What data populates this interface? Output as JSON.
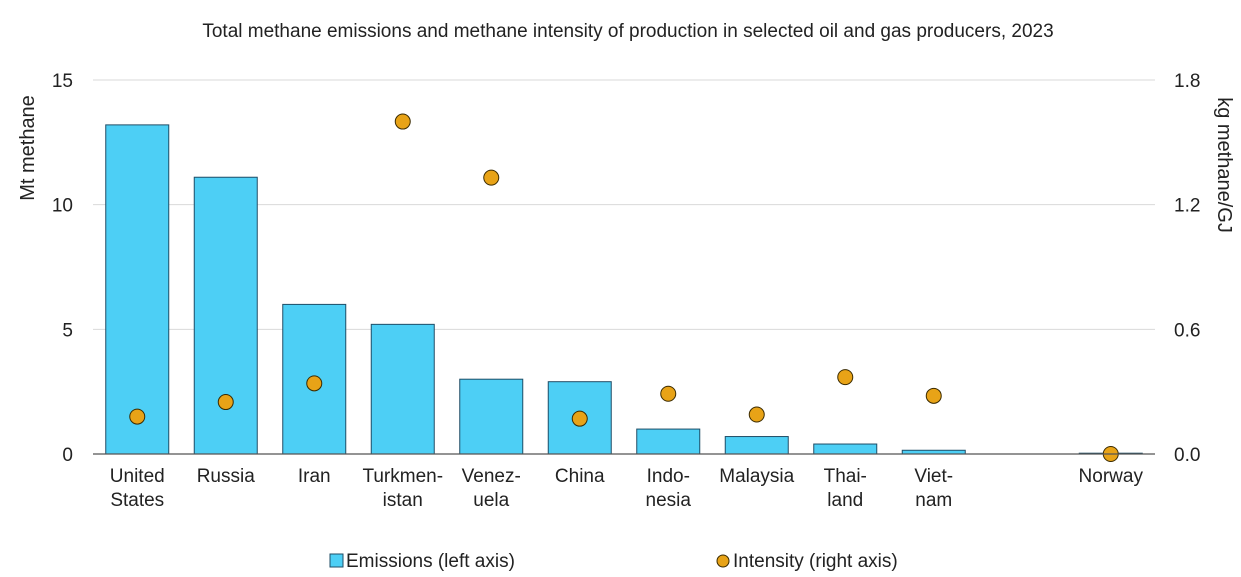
{
  "chart_data": {
    "type": "bar",
    "title": "Total methane emissions and methane intensity of production in selected oil and gas producers, 2023",
    "categories": [
      [
        "United",
        "States"
      ],
      [
        "Russia"
      ],
      [
        "Iran"
      ],
      [
        "Turkmen-",
        "istan"
      ],
      [
        "Venez-",
        "uela"
      ],
      [
        "China"
      ],
      [
        "Indo-",
        "nesia"
      ],
      [
        "Malaysia"
      ],
      [
        "Thai-",
        "land"
      ],
      [
        "Viet-",
        "nam"
      ],
      [
        ""
      ],
      [
        "Norway"
      ]
    ],
    "series": [
      {
        "name": "Emissions (left axis)",
        "type": "bar",
        "axis": "left",
        "color": "#4dcff5",
        "values": [
          13.2,
          11.1,
          6.0,
          5.2,
          3.0,
          2.9,
          1.0,
          0.7,
          0.4,
          0.15,
          null,
          0.0
        ]
      },
      {
        "name": "Intensity (right axis)",
        "type": "scatter",
        "axis": "right",
        "color": "#e8a317",
        "values": [
          0.18,
          0.25,
          0.34,
          1.6,
          1.33,
          0.17,
          0.29,
          0.19,
          0.37,
          0.28,
          null,
          0.0
        ]
      }
    ],
    "ylabel": "Mt methane",
    "ylim": [
      0,
      15
    ],
    "yticks": [
      "0",
      "5",
      "10",
      "15"
    ],
    "y2label": "kg methane/GJ",
    "y2lim": [
      0,
      1.8
    ],
    "y2ticks": [
      "0.0",
      "0.6",
      "1.2",
      "1.8"
    ],
    "grid": true,
    "legend_position": "bottom"
  }
}
